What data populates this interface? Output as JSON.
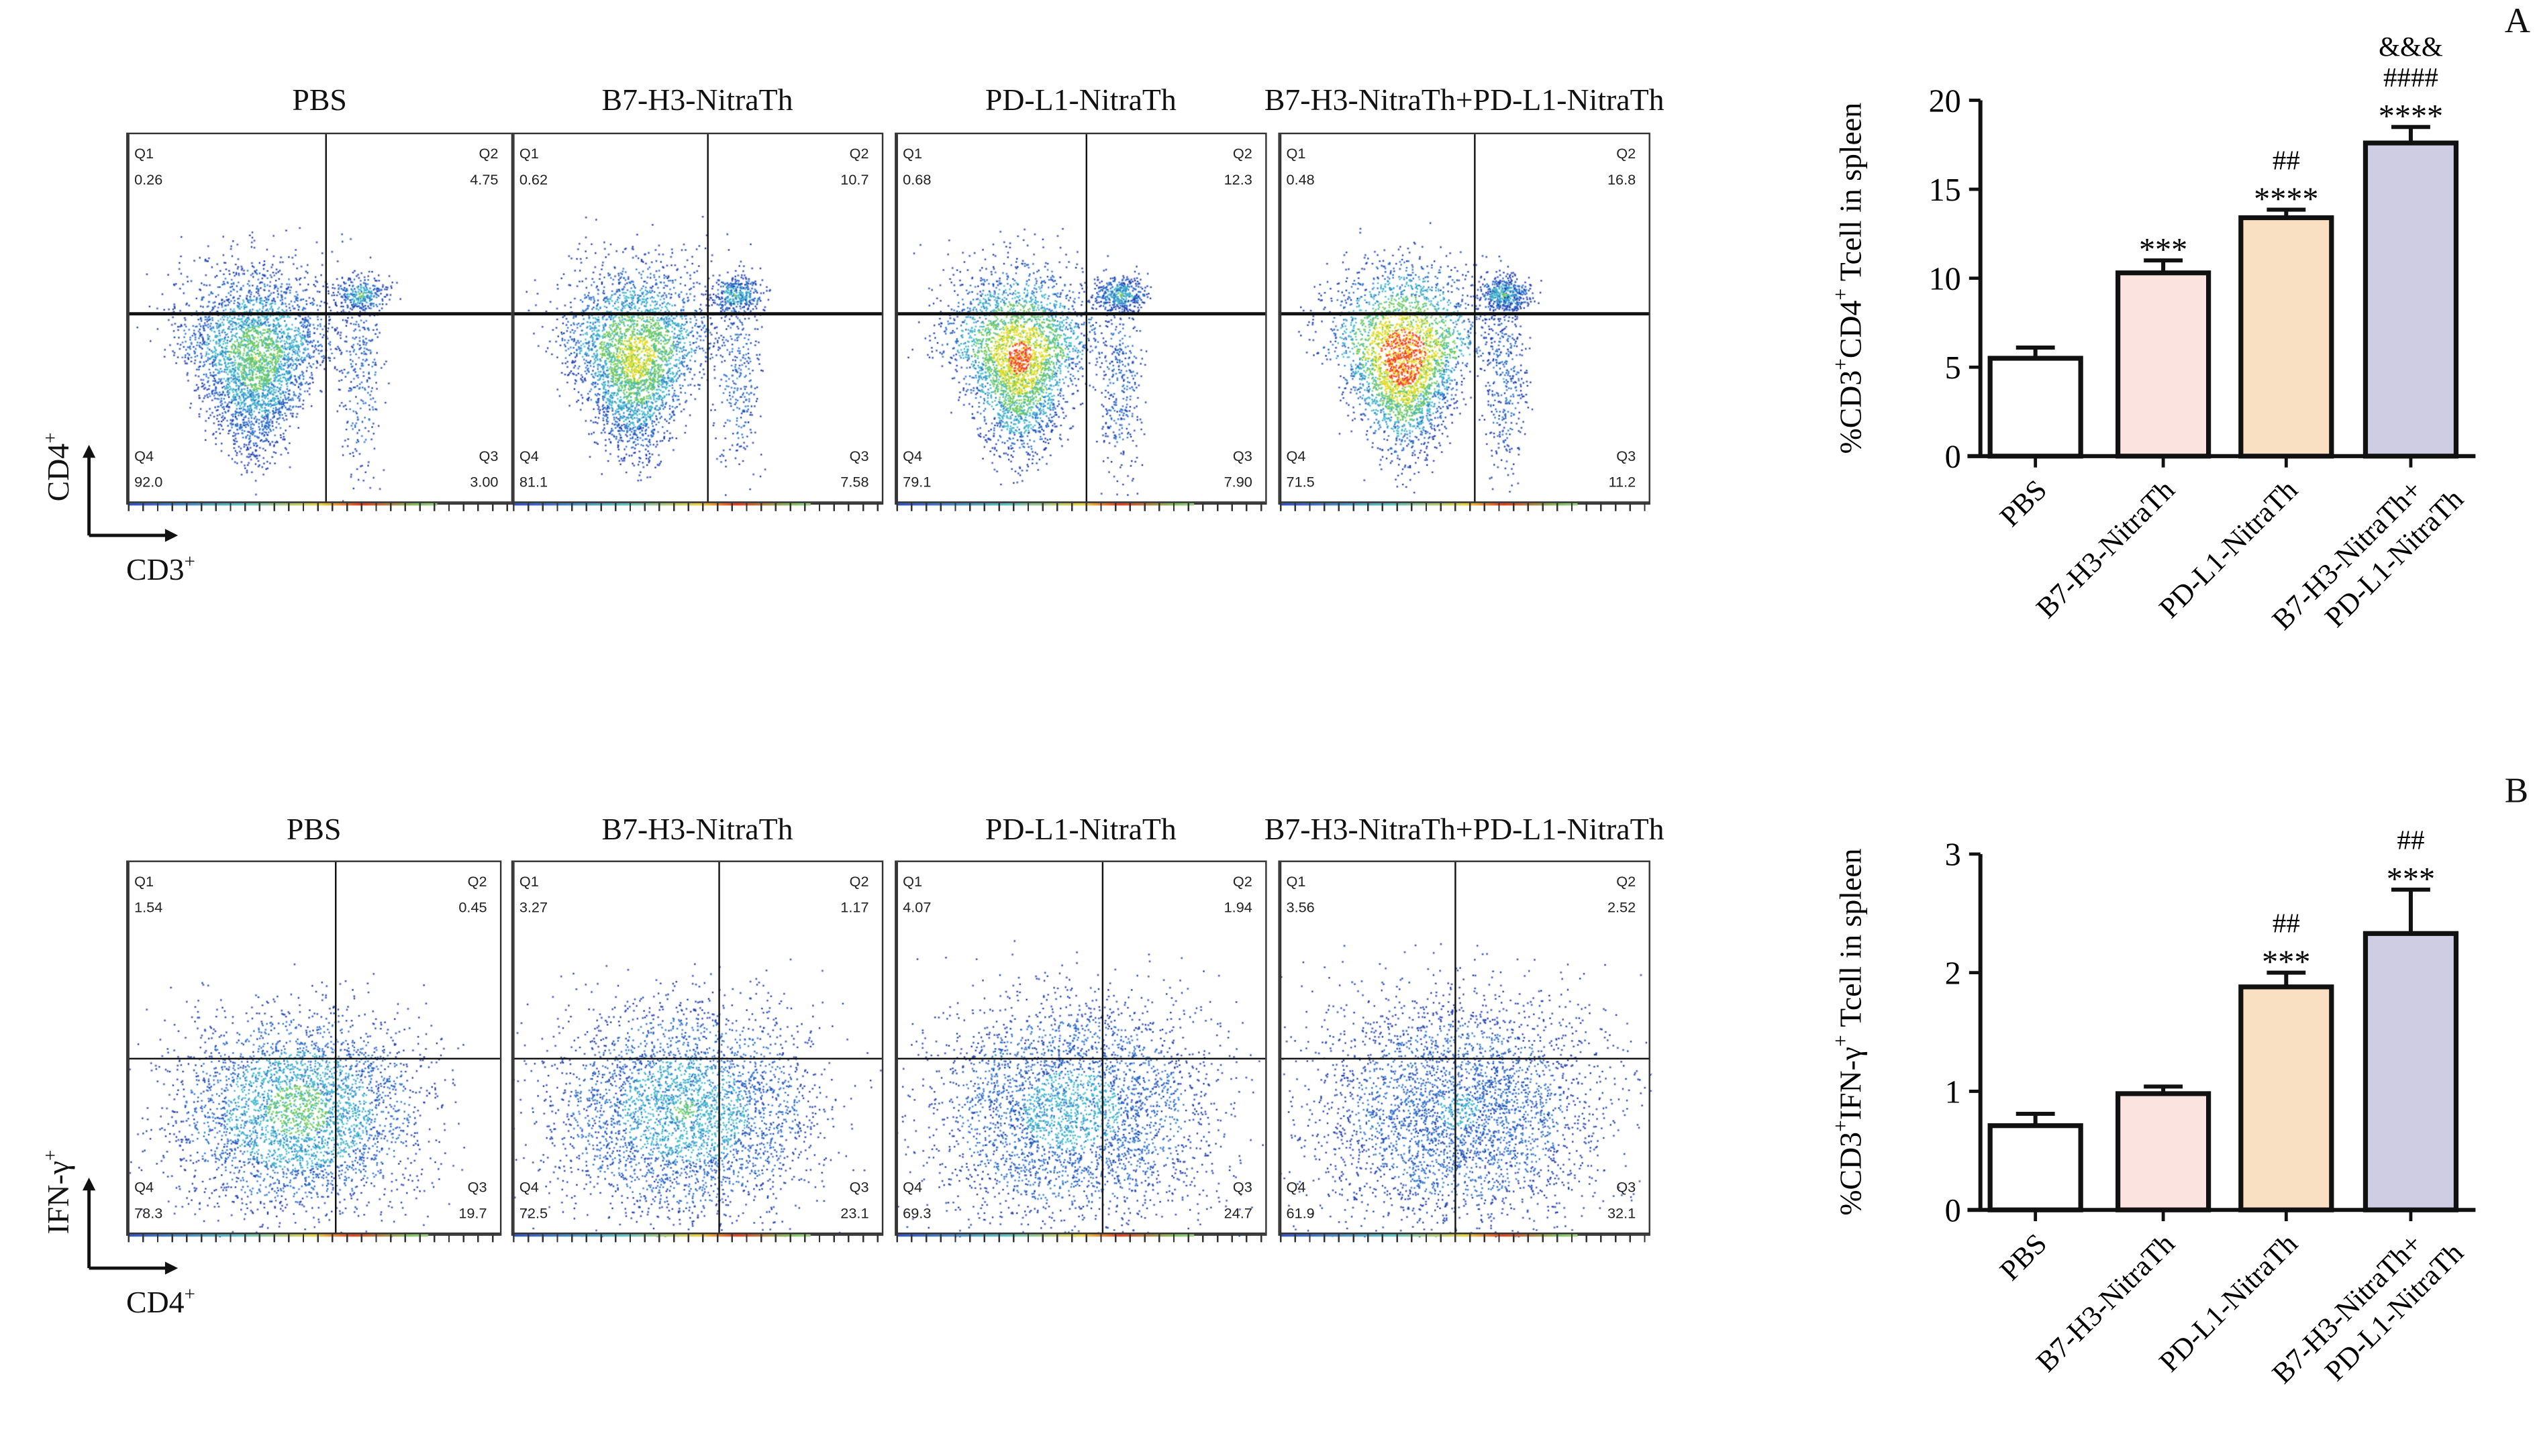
{
  "panel_letters": {
    "a": "A",
    "b": "B"
  },
  "flow_rows": [
    {
      "x_axis_label": "CD3",
      "y_axis_label": "CD4",
      "superscript": "+",
      "panels": [
        {
          "title": "PBS",
          "q1_label": "Q1",
          "q1": "0.26",
          "q2_label": "Q2",
          "q2": "4.75",
          "q3_label": "Q3",
          "q3": "3.00",
          "q4_label": "Q4",
          "q4": "92.0"
        },
        {
          "title": "B7-H3-NitraTh",
          "q1_label": "Q1",
          "q1": "0.62",
          "q2_label": "Q2",
          "q2": "10.7",
          "q3_label": "Q3",
          "q3": "7.58",
          "q4_label": "Q4",
          "q4": "81.1"
        },
        {
          "title": "PD-L1-NitraTh",
          "q1_label": "Q1",
          "q1": "0.68",
          "q2_label": "Q2",
          "q2": "12.3",
          "q3_label": "Q3",
          "q3": "7.90",
          "q4_label": "Q4",
          "q4": "79.1"
        },
        {
          "title": "B7-H3-NitraTh+PD-L1-NitraTh",
          "q1_label": "Q1",
          "q1": "0.48",
          "q2_label": "Q2",
          "q2": "16.8",
          "q3_label": "Q3",
          "q3": "11.2",
          "q4_label": "Q4",
          "q4": "71.5"
        }
      ]
    },
    {
      "x_axis_label": "CD4",
      "y_axis_label": "IFN-γ",
      "superscript": "+",
      "panels": [
        {
          "title": "PBS",
          "q1_label": "Q1",
          "q1": "1.54",
          "q2_label": "Q2",
          "q2": "0.45",
          "q3_label": "Q3",
          "q3": "19.7",
          "q4_label": "Q4",
          "q4": "78.3"
        },
        {
          "title": "B7-H3-NitraTh",
          "q1_label": "Q1",
          "q1": "3.27",
          "q2_label": "Q2",
          "q2": "1.17",
          "q3_label": "Q3",
          "q3": "23.1",
          "q4_label": "Q4",
          "q4": "72.5"
        },
        {
          "title": "PD-L1-NitraTh",
          "q1_label": "Q1",
          "q1": "4.07",
          "q2_label": "Q2",
          "q2": "1.94",
          "q3_label": "Q3",
          "q3": "24.7",
          "q4_label": "Q4",
          "q4": "69.3"
        },
        {
          "title": "B7-H3-NitraTh+PD-L1-NitraTh",
          "q1_label": "Q1",
          "q1": "3.56",
          "q2_label": "Q2",
          "q2": "2.52",
          "q3_label": "Q3",
          "q3": "32.1",
          "q4_label": "Q4",
          "q4": "61.9"
        }
      ]
    }
  ],
  "chart_data": [
    {
      "type": "bar",
      "ylabel_parts": [
        "%CD3",
        "+",
        "CD4",
        "+",
        " Tcell in spleen"
      ],
      "categories": [
        "PBS",
        "B7-H3-NitraTh",
        "PD-L1-NitraTh",
        "B7-H3-NitraTh+|PD-L1-NitraTh"
      ],
      "values": [
        5.5,
        10.3,
        13.4,
        17.6
      ],
      "errors": [
        0.6,
        0.7,
        0.45,
        0.9
      ],
      "significance": [
        [],
        [
          "***"
        ],
        [
          "##",
          "****"
        ],
        [
          "&&&",
          "####",
          "****"
        ]
      ],
      "ylim": [
        0,
        20
      ],
      "yticks": [
        0,
        5,
        10,
        15,
        20
      ],
      "colors": [
        "#ffffff",
        "#fbe3e0",
        "#fae0c3",
        "#cfcde3"
      ]
    },
    {
      "type": "bar",
      "ylabel_parts": [
        "%CD3",
        "+",
        "IFN-γ",
        "+",
        " Tcell in spleen"
      ],
      "categories": [
        "PBS",
        "B7-H3-NitraTh",
        "PD-L1-NitraTh",
        "B7-H3-NitraTh+|PD-L1-NitraTh"
      ],
      "values": [
        0.71,
        0.98,
        1.88,
        2.33
      ],
      "errors": [
        0.1,
        0.06,
        0.12,
        0.37
      ],
      "significance": [
        [],
        [],
        [
          "##",
          "***"
        ],
        [
          "##",
          "***"
        ]
      ],
      "ylim": [
        0,
        3
      ],
      "yticks": [
        0,
        1,
        2,
        3
      ],
      "colors": [
        "#ffffff",
        "#fbe3e0",
        "#fae0c3",
        "#cfcde3"
      ]
    }
  ]
}
